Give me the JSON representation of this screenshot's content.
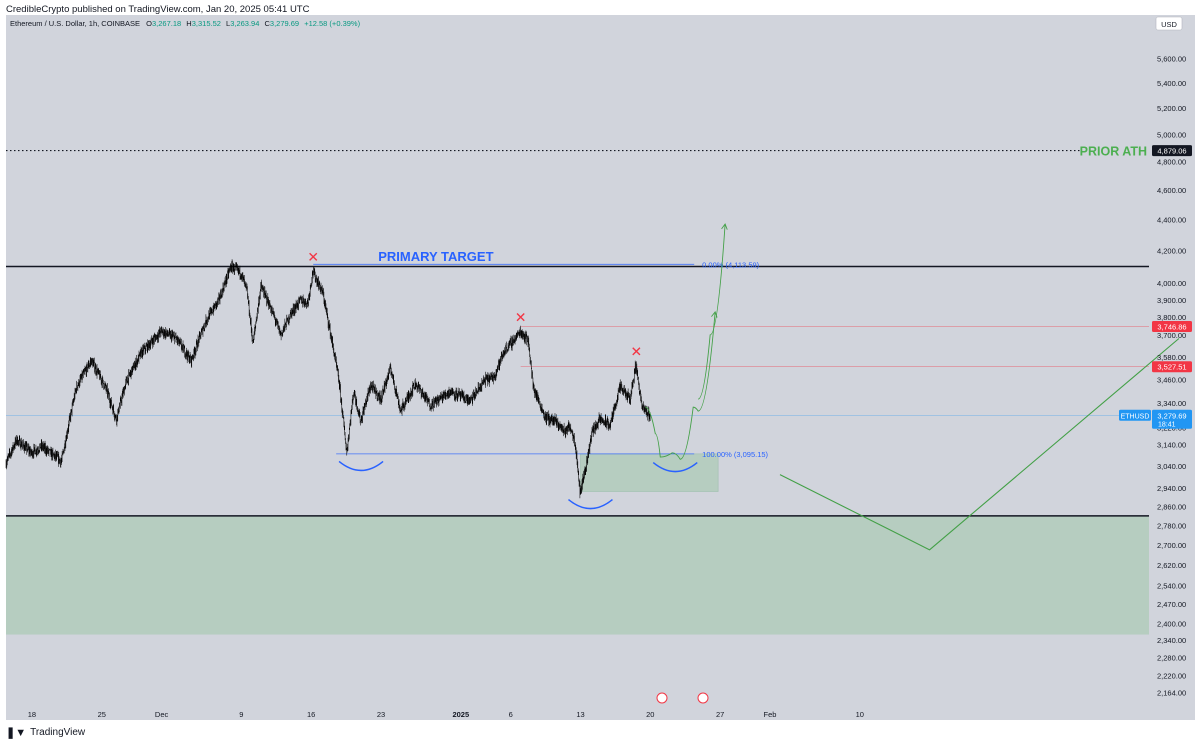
{
  "publisher_line": "CredibleCrypto published on TradingView.com, Jan 20, 2025 05:41 UTC",
  "footer": {
    "brand": "TradingView",
    "icon": "tradingview-logo-icon"
  },
  "colors": {
    "plot_bg": "#d1d4dc",
    "candle": "#000000",
    "zone_green": "#b6cdc0",
    "target_blue": "#2962ff",
    "projection_green": "#43a047",
    "ath_green": "#4caf50",
    "marker_red": "#f23645",
    "ethusd_blue": "#2196f3"
  },
  "chart_data": {
    "type": "candlestick",
    "symbol": {
      "name": "Ethereum / U.S. Dollar",
      "interval": "1h",
      "exchange": "COINBASE",
      "header": "Ethereum / U.S. Dollar, 1h, COINBASE",
      "ohlc": [
        {
          "k": "O",
          "v": "3,267.18"
        },
        {
          "k": "H",
          "v": "3,315.52"
        },
        {
          "k": "L",
          "v": "3,263.94"
        },
        {
          "k": "C",
          "v": "3,279.69"
        }
      ],
      "change": "+12.58 (+0.39%)"
    },
    "currency": "USD",
    "x_labels": [
      {
        "label": "18",
        "day": 18
      },
      {
        "label": "25",
        "day": 25
      },
      {
        "label": "Dec",
        "day": 31
      },
      {
        "label": "9",
        "day": 39
      },
      {
        "label": "16",
        "day": 46
      },
      {
        "label": "23",
        "day": 53
      },
      {
        "label": "2025",
        "day": 61
      },
      {
        "label": "6",
        "day": 66
      },
      {
        "label": "13",
        "day": 73
      },
      {
        "label": "20",
        "day": 80
      },
      {
        "label": "27",
        "day": 87
      },
      {
        "label": "Feb",
        "day": 92
      },
      {
        "label": "10",
        "day": 101
      }
    ],
    "x_range_days": [
      15.4,
      130.0
    ],
    "y_scale": "log",
    "y_range": [
      2120,
      5980
    ],
    "y_ticks": [
      "5,600.00",
      "5,400.00",
      "5,200.00",
      "5,000.00",
      "4,800.00",
      "4,600.00",
      "4,400.00",
      "4,200.00",
      "4,000.00",
      "3,900.00",
      "3,800.00",
      "3,700.00",
      "3,580.00",
      "3,460.00",
      "3,340.00",
      "3,220.00",
      "3,140.00",
      "3,040.00",
      "2,940.00",
      "2,860.00",
      "2,780.00",
      "2,700.00",
      "2,620.00",
      "2,540.00",
      "2,470.00",
      "2,400.00",
      "2,340.00",
      "2,280.00",
      "2,220.00",
      "2,164.00"
    ],
    "price_badges": [
      {
        "label": "4,879.06",
        "price": 4879.06,
        "bg": "#131722",
        "fg": "#ffffff"
      },
      {
        "label": "3,746.86",
        "price": 3746.86,
        "bg": "#f23645",
        "fg": "#ffffff"
      },
      {
        "label": "3,527.51",
        "price": 3527.51,
        "bg": "#f23645",
        "fg": "#ffffff"
      },
      {
        "label": "3,279.69",
        "sub": "18:41",
        "price": 3279.69,
        "bg": "#2196f3",
        "fg": "#ffffff",
        "tag": "ETHUSD"
      }
    ],
    "price_path_anchors": [
      [
        15.4,
        3050
      ],
      [
        16.5,
        3160
      ],
      [
        18.0,
        3100
      ],
      [
        19.0,
        3130
      ],
      [
        21.0,
        3060
      ],
      [
        22.5,
        3420
      ],
      [
        24.0,
        3560
      ],
      [
        25.5,
        3410
      ],
      [
        26.5,
        3260
      ],
      [
        27.5,
        3450
      ],
      [
        29.0,
        3600
      ],
      [
        31.0,
        3720
      ],
      [
        32.5,
        3680
      ],
      [
        34.0,
        3560
      ],
      [
        35.5,
        3780
      ],
      [
        36.8,
        3900
      ],
      [
        38.0,
        4100
      ],
      [
        39.0,
        4060
      ],
      [
        39.6,
        3950
      ],
      [
        40.2,
        3650
      ],
      [
        41.0,
        3980
      ],
      [
        42.0,
        3850
      ],
      [
        43.0,
        3700
      ],
      [
        44.0,
        3820
      ],
      [
        45.0,
        3900
      ],
      [
        45.7,
        3880
      ],
      [
        46.2,
        4070
      ],
      [
        47.2,
        3940
      ],
      [
        48.0,
        3700
      ],
      [
        48.8,
        3460
      ],
      [
        49.6,
        3100
      ],
      [
        50.3,
        3400
      ],
      [
        51.0,
        3250
      ],
      [
        52.0,
        3430
      ],
      [
        53.0,
        3360
      ],
      [
        54.0,
        3520
      ],
      [
        55.0,
        3300
      ],
      [
        56.5,
        3440
      ],
      [
        58.0,
        3330
      ],
      [
        60.0,
        3400
      ],
      [
        62.0,
        3350
      ],
      [
        63.5,
        3460
      ],
      [
        64.3,
        3470
      ],
      [
        65.5,
        3620
      ],
      [
        66.5,
        3680
      ],
      [
        67.0,
        3720
      ],
      [
        67.8,
        3670
      ],
      [
        68.3,
        3420
      ],
      [
        69.5,
        3270
      ],
      [
        70.5,
        3250
      ],
      [
        71.5,
        3200
      ],
      [
        72.0,
        3230
      ],
      [
        72.5,
        3150
      ],
      [
        73.0,
        2920
      ],
      [
        73.6,
        3040
      ],
      [
        74.2,
        3200
      ],
      [
        75.0,
        3260
      ],
      [
        76.0,
        3230
      ],
      [
        77.0,
        3420
      ],
      [
        78.0,
        3360
      ],
      [
        78.6,
        3540
      ],
      [
        79.2,
        3320
      ],
      [
        80.0,
        3280
      ]
    ],
    "levels": [
      {
        "name": "prior-ath",
        "price": 4879.06,
        "label": "PRIOR ATH",
        "style": "dotted"
      },
      {
        "name": "range-high",
        "price": 4100,
        "style": "solid-black"
      },
      {
        "name": "fib-0",
        "price": 4113.59,
        "label": "0.00% (4,113.59)"
      },
      {
        "name": "red-level-1",
        "price": 3746.86
      },
      {
        "name": "red-level-2",
        "price": 3527.51
      },
      {
        "name": "last-price",
        "price": 3279.69
      },
      {
        "name": "fib-100",
        "price": 3095.15,
        "label": "100.00% (3,095.15)"
      },
      {
        "name": "range-low",
        "price": 2820,
        "style": "solid-black"
      }
    ],
    "zones": [
      {
        "name": "support-zone",
        "day_from": 15.4,
        "day_to": 130.0,
        "price_from": 2360,
        "price_to": 2820
      },
      {
        "name": "entry-zone",
        "day_from": 73.0,
        "day_to": 86.8,
        "price_from": 2925,
        "price_to": 3095
      }
    ],
    "annotations": [
      {
        "name": "primary-target",
        "text": "PRIMARY TARGET",
        "day": 58.5,
        "price": 4135
      }
    ],
    "markers": [
      {
        "name": "rejection-1",
        "day": 46.2,
        "price": 4160
      },
      {
        "name": "rejection-2",
        "day": 67.0,
        "price": 3800
      },
      {
        "name": "rejection-3",
        "day": 78.6,
        "price": 3610
      }
    ],
    "arcs": [
      {
        "name": "bottom-arc-1",
        "day": 51.0,
        "price": 3060
      },
      {
        "name": "bottom-arc-2",
        "day": 74.0,
        "price": 2890
      },
      {
        "name": "bottom-arc-3",
        "day": 82.5,
        "price": 3055
      }
    ],
    "projections": [
      {
        "name": "projection-path-1",
        "points": [
          [
            79.5,
            3320
          ],
          [
            80.5,
            3190
          ],
          [
            81.0,
            3080
          ],
          [
            82.2,
            3100
          ],
          [
            83.0,
            3070
          ],
          [
            84.3,
            3320
          ],
          [
            84.8,
            3300
          ],
          [
            86.5,
            3830
          ]
        ]
      },
      {
        "name": "projection-path-2",
        "points": [
          [
            84.8,
            3360
          ],
          [
            86.0,
            3700
          ],
          [
            87.5,
            4370
          ]
        ]
      },
      {
        "name": "projection-path-3",
        "points": [
          [
            93.0,
            3000
          ],
          [
            108.0,
            2680
          ],
          [
            133.0,
            3680
          ]
        ]
      }
    ]
  }
}
